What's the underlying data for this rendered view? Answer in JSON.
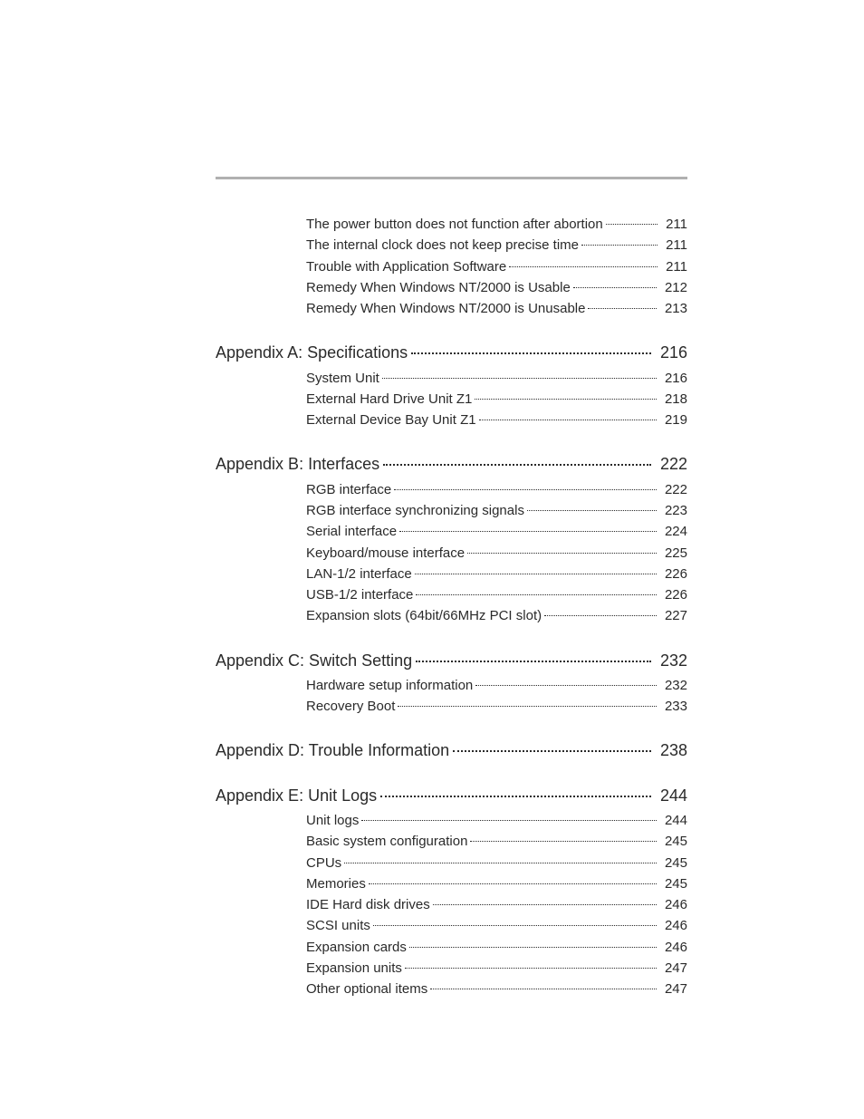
{
  "styling": {
    "page_bg": "#ffffff",
    "text_color": "#2a2a2a",
    "rule_color": "#b0b0b0",
    "heading_fontsize": 18,
    "sub_fontsize": 15,
    "font_family": "Arial, Helvetica, sans-serif"
  },
  "sections": {
    "orphan": {
      "items": [
        {
          "title": "The power button does not function after abortion",
          "page": "211"
        },
        {
          "title": "The internal clock does not keep precise time",
          "page": "211"
        },
        {
          "title": "Trouble with Application Software",
          "page": "211"
        },
        {
          "title": "Remedy When Windows NT/2000 is Usable",
          "page": "212"
        },
        {
          "title": "Remedy When Windows NT/2000 is Unusable",
          "page": "213"
        }
      ]
    },
    "appA": {
      "heading": {
        "title": "Appendix A: Specifications",
        "page": "216"
      },
      "items": [
        {
          "title": "System Unit",
          "page": "216"
        },
        {
          "title": "External Hard Drive Unit Z1",
          "page": "218"
        },
        {
          "title": "External Device Bay Unit Z1",
          "page": "219"
        }
      ]
    },
    "appB": {
      "heading": {
        "title": "Appendix B: Interfaces",
        "page": "222"
      },
      "items": [
        {
          "title": "RGB interface",
          "page": "222"
        },
        {
          "title": "RGB interface synchronizing signals",
          "page": "223"
        },
        {
          "title": "Serial interface",
          "page": "224"
        },
        {
          "title": "Keyboard/mouse interface",
          "page": "225"
        },
        {
          "title": "LAN-1/2 interface",
          "page": "226"
        },
        {
          "title": "USB-1/2 interface",
          "page": "226"
        },
        {
          "title": "Expansion slots (64bit/66MHz PCI slot)",
          "page": "227"
        }
      ]
    },
    "appC": {
      "heading": {
        "title": "Appendix C: Switch Setting",
        "page": "232"
      },
      "items": [
        {
          "title": "Hardware setup information",
          "page": "232"
        },
        {
          "title": "Recovery Boot",
          "page": "233"
        }
      ]
    },
    "appD": {
      "heading": {
        "title": "Appendix D: Trouble Information",
        "page": "238"
      },
      "items": []
    },
    "appE": {
      "heading": {
        "title": "Appendix E: Unit Logs",
        "page": "244"
      },
      "items": [
        {
          "title": "Unit logs",
          "page": "244"
        },
        {
          "title": "Basic system configuration",
          "page": "245"
        },
        {
          "title": "CPUs",
          "page": "245"
        },
        {
          "title": "Memories",
          "page": "245"
        },
        {
          "title": "IDE Hard disk drives",
          "page": "246"
        },
        {
          "title": "SCSI units",
          "page": "246"
        },
        {
          "title": "Expansion cards",
          "page": "246"
        },
        {
          "title": "Expansion units",
          "page": "247"
        },
        {
          "title": "Other optional items",
          "page": "247"
        }
      ]
    }
  }
}
